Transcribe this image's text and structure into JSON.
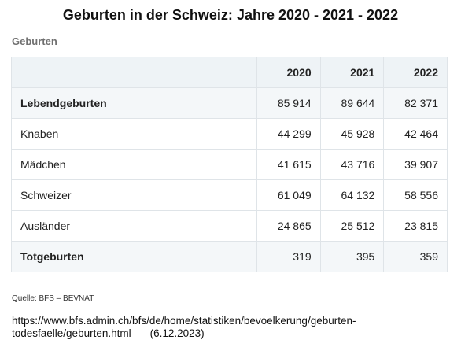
{
  "title": "Geburten in der Schweiz: Jahre 2020 - 2021 - 2022",
  "subtitle": "Geburten",
  "table": {
    "columns": [
      "2020",
      "2021",
      "2022"
    ],
    "rows": [
      {
        "label": "Lebendgeburten",
        "values": [
          "85 914",
          "89 644",
          "82 371"
        ]
      },
      {
        "label": "Knaben",
        "values": [
          "44 299",
          "45 928",
          "42 464"
        ]
      },
      {
        "label": "Mädchen",
        "values": [
          "41 615",
          "43 716",
          "39 907"
        ]
      },
      {
        "label": "Schweizer",
        "values": [
          "61 049",
          "64 132",
          "58 556"
        ]
      },
      {
        "label": "Ausländer",
        "values": [
          "24 865",
          "25 512",
          "23 815"
        ]
      },
      {
        "label": "Totgeburten",
        "values": [
          "319",
          "395",
          "359"
        ]
      }
    ]
  },
  "source": "Quelle: BFS – BEVNAT",
  "url_line1": "https://www.bfs.admin.ch/bfs/de/home/statistiken/bevoelkerung/geburten-",
  "url_line2": "todesfaelle/geburten.html",
  "date": "(6.12.2023)",
  "colors": {
    "header_bg": "#eef3f6",
    "border": "#dfe4e8",
    "subtitle": "#707070"
  }
}
